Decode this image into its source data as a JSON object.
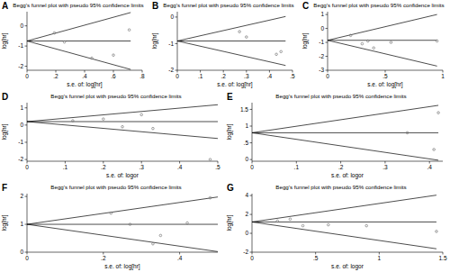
{
  "chart_data": [
    {
      "type": "scatter",
      "panel_label": "A",
      "title": "Begg's funnel plot with pseudo 95% confidence limits",
      "x_label": "s.e. of: log[hr]",
      "y_label": "log[hr]",
      "xlim": [
        0,
        0.8
      ],
      "ylim": [
        -2.2,
        0.7
      ],
      "xticks": [
        0,
        {
          "value": 0.2,
          "label": ".2"
        },
        {
          "value": 0.4,
          "label": ".4"
        },
        {
          "value": 0.6,
          "label": ".6"
        },
        {
          "value": 0.8,
          "label": ".8"
        }
      ],
      "yticks": [
        -2,
        -1,
        0
      ],
      "series": [
        {
          "type": "line",
          "color": "#000000",
          "line_style": "solid",
          "x": [
            0,
            0.72
          ],
          "values": [
            -0.75,
            -0.75
          ]
        },
        {
          "type": "line",
          "color": "#000000",
          "line_style": "solid",
          "x": [
            0,
            0.72
          ],
          "values": [
            -0.75,
            0.66
          ]
        },
        {
          "type": "line",
          "color": "#000000",
          "line_style": "solid",
          "x": [
            0,
            0.72
          ],
          "values": [
            -0.75,
            -2.16
          ]
        },
        {
          "type": "scatter",
          "color": "#777777",
          "marker": "circle",
          "x": [
            0.19,
            0.26,
            0.45,
            0.6,
            0.71
          ],
          "values": [
            -0.35,
            -0.8,
            -1.6,
            -1.45,
            -0.2
          ]
        }
      ]
    },
    {
      "type": "scatter",
      "panel_label": "B",
      "title": "Begg's funnel plot with pseudo 95% confidence limits",
      "x_label": "s.e. of: log[hr]",
      "y_label": "log[hr]",
      "xlim": [
        0,
        0.5
      ],
      "ylim": [
        -2,
        0.2
      ],
      "xticks": [
        0,
        {
          "value": 0.1,
          "label": ".1"
        },
        {
          "value": 0.2,
          "label": ".2"
        },
        {
          "value": 0.3,
          "label": ".3"
        },
        {
          "value": 0.4,
          "label": ".4"
        },
        {
          "value": 0.5,
          "label": ".5"
        }
      ],
      "yticks": [
        -2,
        -1,
        0
      ],
      "series": [
        {
          "type": "line",
          "color": "#000000",
          "line_style": "solid",
          "x": [
            0,
            0.47
          ],
          "values": [
            -0.9,
            -0.9
          ]
        },
        {
          "type": "line",
          "color": "#000000",
          "line_style": "solid",
          "x": [
            0,
            0.47
          ],
          "values": [
            -0.9,
            0.02
          ]
        },
        {
          "type": "line",
          "color": "#000000",
          "line_style": "solid",
          "x": [
            0,
            0.47
          ],
          "values": [
            -0.9,
            -1.82
          ]
        },
        {
          "type": "scatter",
          "color": "#777777",
          "marker": "circle",
          "x": [
            0.27,
            0.3,
            0.43,
            0.45
          ],
          "values": [
            -0.55,
            -0.75,
            -1.4,
            -1.3
          ]
        }
      ]
    },
    {
      "type": "scatter",
      "panel_label": "C",
      "title": "Begg's funnel plot with pseudo 95% confidence limits",
      "x_label": "s.e. of: log[hr]",
      "y_label": "log[hr]",
      "xlim": [
        0,
        1
      ],
      "ylim": [
        -3,
        1.2
      ],
      "xticks": [
        0,
        {
          "value": 0.5,
          "label": ".5"
        },
        1
      ],
      "yticks": [
        -3,
        -2,
        -1,
        0,
        1
      ],
      "series": [
        {
          "type": "line",
          "color": "#000000",
          "line_style": "solid",
          "x": [
            0,
            0.95
          ],
          "values": [
            -0.85,
            -0.85
          ]
        },
        {
          "type": "line",
          "color": "#000000",
          "line_style": "solid",
          "x": [
            0,
            0.95
          ],
          "values": [
            -0.85,
            1.0
          ]
        },
        {
          "type": "line",
          "color": "#000000",
          "line_style": "solid",
          "x": [
            0,
            0.95
          ],
          "values": [
            -0.85,
            -2.7
          ]
        },
        {
          "type": "scatter",
          "color": "#777777",
          "marker": "circle",
          "x": [
            0.2,
            0.3,
            0.35,
            0.4,
            0.55,
            0.95
          ],
          "values": [
            -0.5,
            -1.1,
            -0.9,
            -1.4,
            -1.0,
            -0.9
          ]
        }
      ]
    },
    {
      "type": "scatter",
      "panel_label": "D",
      "title": "Begg's funnel plot with pseudo 95% confidence limits",
      "x_label": "s.e. of: logor",
      "y_label": "log[hr]",
      "xlim": [
        0,
        0.5
      ],
      "ylim": [
        -2.1,
        1.3
      ],
      "xticks": [
        0,
        {
          "value": 0.1,
          "label": ".1"
        },
        {
          "value": 0.2,
          "label": ".2"
        },
        {
          "value": 0.3,
          "label": ".3"
        },
        {
          "value": 0.4,
          "label": ".4"
        },
        {
          "value": 0.5,
          "label": ".5"
        }
      ],
      "yticks": [
        -2,
        -1,
        0,
        1
      ],
      "series": [
        {
          "type": "line",
          "color": "#000000",
          "line_style": "solid",
          "x": [
            0,
            0.5
          ],
          "values": [
            0.2,
            0.2
          ]
        },
        {
          "type": "line",
          "color": "#000000",
          "line_style": "solid",
          "x": [
            0,
            0.5
          ],
          "values": [
            0.2,
            1.18
          ]
        },
        {
          "type": "line",
          "color": "#000000",
          "line_style": "solid",
          "x": [
            0,
            0.5
          ],
          "values": [
            0.2,
            -0.78
          ]
        },
        {
          "type": "scatter",
          "color": "#777777",
          "marker": "circle",
          "x": [
            0.12,
            0.2,
            0.25,
            0.3,
            0.33,
            0.48
          ],
          "values": [
            0.25,
            0.35,
            -0.1,
            0.6,
            -0.2,
            -2.0
          ]
        }
      ]
    },
    {
      "type": "scatter",
      "panel_label": "E",
      "title": "Begg's funnel plot with pseudo 95% confidence limits",
      "x_label": "s.e. of: logor",
      "y_label": "log[hr]",
      "xlim": [
        0,
        0.43
      ],
      "ylim": [
        -0.05,
        1.7
      ],
      "xticks": [
        0,
        {
          "value": 0.1,
          "label": ".1"
        },
        {
          "value": 0.2,
          "label": ".2"
        },
        {
          "value": 0.3,
          "label": ".3"
        },
        {
          "value": 0.4,
          "label": ".4"
        }
      ],
      "yticks": [
        0,
        {
          "value": 0.5,
          "label": ".5"
        },
        1,
        {
          "value": 1.5,
          "label": "1.5"
        }
      ],
      "series": [
        {
          "type": "line",
          "color": "#000000",
          "line_style": "solid",
          "x": [
            0,
            0.42
          ],
          "values": [
            0.8,
            0.8
          ]
        },
        {
          "type": "line",
          "color": "#000000",
          "line_style": "solid",
          "x": [
            0,
            0.42
          ],
          "values": [
            0.8,
            1.62
          ]
        },
        {
          "type": "line",
          "color": "#000000",
          "line_style": "solid",
          "x": [
            0,
            0.42
          ],
          "values": [
            0.8,
            -0.02
          ]
        },
        {
          "type": "scatter",
          "color": "#777777",
          "marker": "circle",
          "x": [
            0.35,
            0.41,
            0.42
          ],
          "values": [
            0.8,
            0.3,
            1.4
          ]
        }
      ]
    },
    {
      "type": "scatter",
      "panel_label": "F",
      "title": "Begg's funnel plot with pseudo 95% confidence limits",
      "x_label": "s.e. of: log[hr]",
      "y_label": "log[hr]",
      "xlim": [
        0,
        0.5
      ],
      "ylim": [
        0,
        2.1
      ],
      "xticks": [
        0,
        {
          "value": 0.2,
          "label": ".2"
        },
        {
          "value": 0.4,
          "label": ".4"
        }
      ],
      "yticks": [
        0,
        1,
        2
      ],
      "series": [
        {
          "type": "line",
          "color": "#000000",
          "line_style": "solid",
          "x": [
            0,
            0.5
          ],
          "values": [
            1.0,
            1.0
          ]
        },
        {
          "type": "line",
          "color": "#000000",
          "line_style": "solid",
          "x": [
            0,
            0.5
          ],
          "values": [
            1.0,
            1.98
          ]
        },
        {
          "type": "line",
          "color": "#000000",
          "line_style": "solid",
          "x": [
            0,
            0.5
          ],
          "values": [
            1.0,
            0.02
          ]
        },
        {
          "type": "scatter",
          "color": "#777777",
          "marker": "circle",
          "x": [
            0.22,
            0.27,
            0.33,
            0.35,
            0.42,
            0.48
          ],
          "values": [
            1.4,
            1.0,
            0.3,
            0.6,
            1.05,
            1.95
          ]
        }
      ]
    },
    {
      "type": "scatter",
      "panel_label": "G",
      "title": "Begg's funnel plot with pseudo 95% confidence limits",
      "x_label": "s.e. of: logor",
      "y_label": "log[hr]",
      "xlim": [
        0,
        1.5
      ],
      "ylim": [
        -2,
        4.2
      ],
      "xticks": [
        0,
        {
          "value": 0.5,
          "label": ".5"
        },
        1,
        {
          "value": 1.5,
          "label": "1.5"
        }
      ],
      "yticks": [
        -2,
        0,
        2,
        4
      ],
      "series": [
        {
          "type": "line",
          "color": "#000000",
          "line_style": "solid",
          "x": [
            0,
            1.45
          ],
          "values": [
            1.2,
            1.2
          ]
        },
        {
          "type": "line",
          "color": "#000000",
          "line_style": "solid",
          "x": [
            0,
            1.45
          ],
          "values": [
            1.2,
            4.04
          ]
        },
        {
          "type": "line",
          "color": "#000000",
          "line_style": "solid",
          "x": [
            0,
            1.45
          ],
          "values": [
            1.2,
            -1.64
          ]
        },
        {
          "type": "scatter",
          "color": "#777777",
          "marker": "circle",
          "x": [
            0.2,
            0.3,
            0.4,
            0.6,
            0.9,
            1.45
          ],
          "values": [
            1.3,
            1.5,
            0.8,
            0.9,
            0.8,
            0.2
          ]
        }
      ]
    }
  ]
}
